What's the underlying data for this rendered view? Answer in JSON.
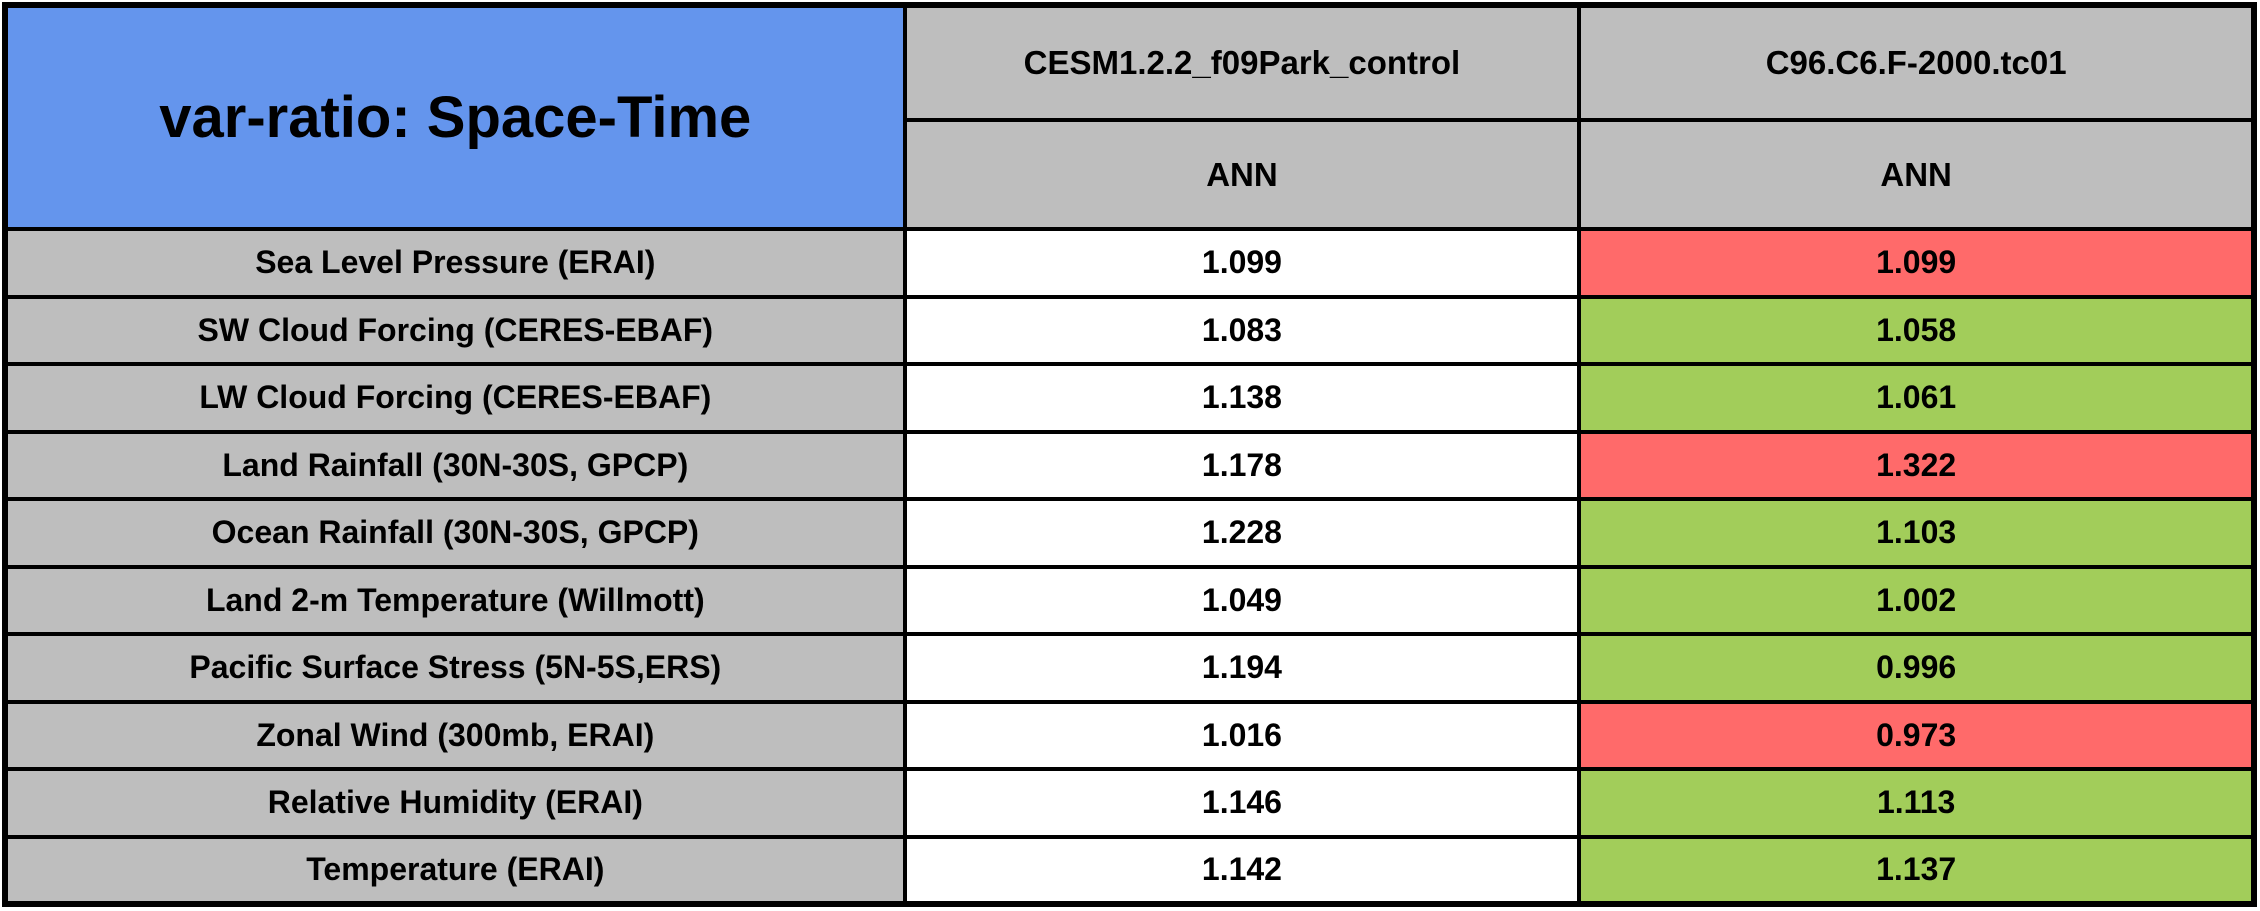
{
  "title": "var-ratio: Space-Time",
  "colors": {
    "title_bg": "#6495ED",
    "header_bg": "#BEBEBE",
    "label_bg": "#BEBEBE",
    "value_bg_white": "#FFFFFF",
    "value_bg_green": "#A2CD5A",
    "value_bg_red": "#FF6A6A",
    "border": "#000000",
    "text": "#000000"
  },
  "columns": [
    {
      "model": "CESM1.2.2_f09Park_control",
      "season": "ANN"
    },
    {
      "model": "C96.C6.F-2000.tc01",
      "season": "ANN"
    }
  ],
  "rows": [
    {
      "label": "Sea Level Pressure (ERAI)",
      "values": [
        "1.099",
        "1.099"
      ],
      "cell_colors": [
        "white",
        "red"
      ]
    },
    {
      "label": "SW Cloud Forcing (CERES-EBAF)",
      "values": [
        "1.083",
        "1.058"
      ],
      "cell_colors": [
        "white",
        "green"
      ]
    },
    {
      "label": "LW Cloud Forcing (CERES-EBAF)",
      "values": [
        "1.138",
        "1.061"
      ],
      "cell_colors": [
        "white",
        "green"
      ]
    },
    {
      "label": "Land Rainfall (30N-30S, GPCP)",
      "values": [
        "1.178",
        "1.322"
      ],
      "cell_colors": [
        "white",
        "red"
      ]
    },
    {
      "label": "Ocean Rainfall (30N-30S, GPCP)",
      "values": [
        "1.228",
        "1.103"
      ],
      "cell_colors": [
        "white",
        "green"
      ]
    },
    {
      "label": "Land 2-m Temperature (Willmott)",
      "values": [
        "1.049",
        "1.002"
      ],
      "cell_colors": [
        "white",
        "green"
      ]
    },
    {
      "label": "Pacific Surface Stress (5N-5S,ERS)",
      "values": [
        "1.194",
        "0.996"
      ],
      "cell_colors": [
        "white",
        "green"
      ]
    },
    {
      "label": "Zonal Wind (300mb, ERAI)",
      "values": [
        "1.016",
        "0.973"
      ],
      "cell_colors": [
        "white",
        "red"
      ]
    },
    {
      "label": "Relative Humidity (ERAI)",
      "values": [
        "1.146",
        "1.113"
      ],
      "cell_colors": [
        "white",
        "green"
      ]
    },
    {
      "label": "Temperature (ERAI)",
      "values": [
        "1.142",
        "1.137"
      ],
      "cell_colors": [
        "white",
        "green"
      ]
    }
  ],
  "chart_data": {
    "type": "table",
    "title": "var-ratio: Space-Time",
    "columns": [
      "CESM1.2.2_f09Park_control",
      "C96.C6.F-2000.tc01"
    ],
    "subcolumns": [
      "ANN",
      "ANN"
    ],
    "row_labels": [
      "Sea Level Pressure (ERAI)",
      "SW Cloud Forcing (CERES-EBAF)",
      "LW Cloud Forcing (CERES-EBAF)",
      "Land Rainfall (30N-30S, GPCP)",
      "Ocean Rainfall (30N-30S, GPCP)",
      "Land 2-m Temperature (Willmott)",
      "Pacific Surface Stress (5N-5S,ERS)",
      "Zonal Wind (300mb, ERAI)",
      "Relative Humidity (ERAI)",
      "Temperature (ERAI)"
    ],
    "values": [
      [
        1.099,
        1.099
      ],
      [
        1.083,
        1.058
      ],
      [
        1.138,
        1.061
      ],
      [
        1.178,
        1.322
      ],
      [
        1.228,
        1.103
      ],
      [
        1.049,
        1.002
      ],
      [
        1.194,
        0.996
      ],
      [
        1.016,
        0.973
      ],
      [
        1.146,
        1.113
      ],
      [
        1.142,
        1.137
      ]
    ],
    "cell_highlight": [
      [
        "none",
        "red"
      ],
      [
        "none",
        "green"
      ],
      [
        "none",
        "green"
      ],
      [
        "none",
        "red"
      ],
      [
        "none",
        "green"
      ],
      [
        "none",
        "green"
      ],
      [
        "none",
        "green"
      ],
      [
        "none",
        "red"
      ],
      [
        "none",
        "green"
      ],
      [
        "none",
        "green"
      ]
    ]
  }
}
